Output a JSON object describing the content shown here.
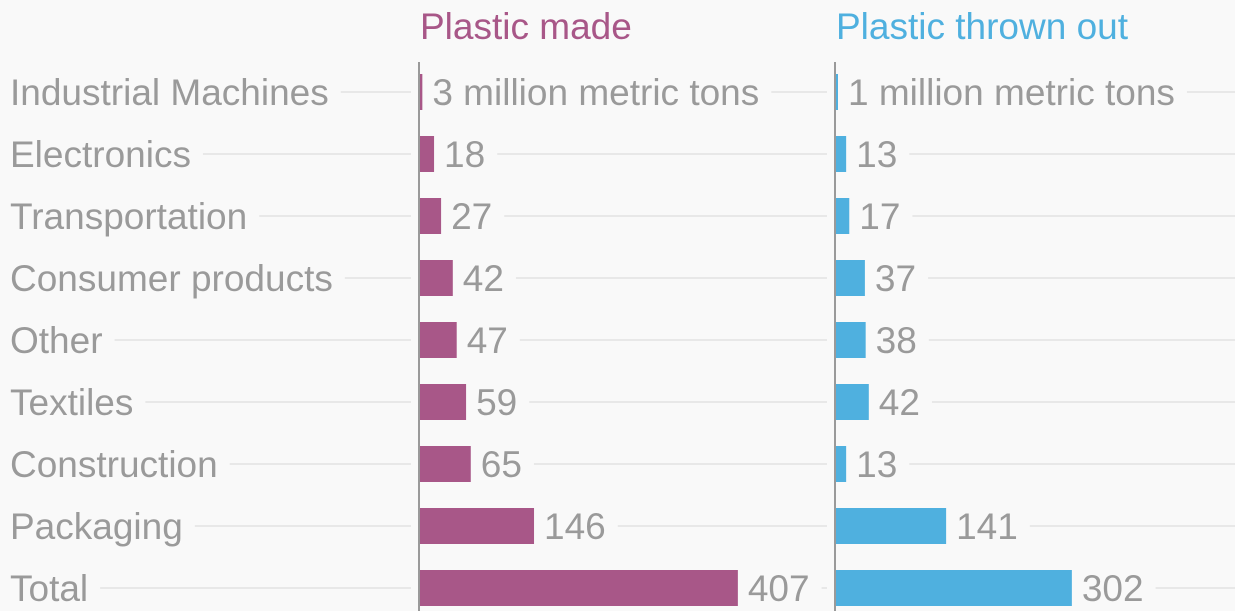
{
  "chart_data": {
    "type": "bar",
    "orientation": "horizontal",
    "unit": "million metric tons",
    "categories": [
      "Industrial Machines",
      "Electronics",
      "Transportation",
      "Consumer products",
      "Other",
      "Textiles",
      "Construction",
      "Packaging",
      "Total"
    ],
    "series": [
      {
        "name": "Plastic made",
        "color": "#a85788",
        "values": [
          3,
          18,
          27,
          42,
          47,
          59,
          65,
          146,
          407
        ],
        "value_labels": [
          "3 million metric tons",
          "18",
          "27",
          "42",
          "47",
          "59",
          "65",
          "146",
          "407"
        ]
      },
      {
        "name": "Plastic thrown out",
        "color": "#4fb0df",
        "values": [
          1,
          13,
          17,
          37,
          38,
          42,
          13,
          141,
          302
        ],
        "value_labels": [
          "1 million metric tons",
          "13",
          "17",
          "37",
          "38",
          "42",
          "13",
          "141",
          "302"
        ]
      }
    ],
    "grid": true,
    "legend": "column headers at top"
  }
}
